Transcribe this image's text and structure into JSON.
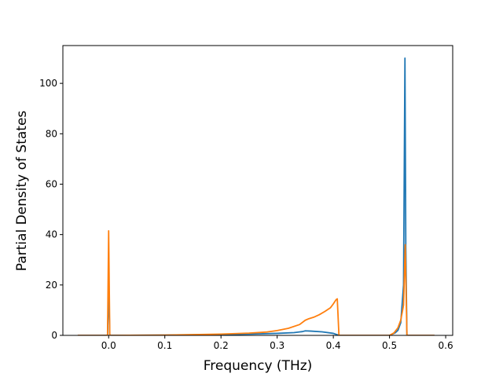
{
  "chart_data": {
    "type": "line",
    "title": "",
    "xlabel": "Frequency (THz)",
    "ylabel": "Partial Density of States",
    "xlim": [
      -0.0815,
      0.6125
    ],
    "ylim": [
      0,
      115
    ],
    "xticks": [
      0.0,
      0.1,
      0.2,
      0.3,
      0.4,
      0.5,
      0.6
    ],
    "xtick_labels": [
      "0.0",
      "0.1",
      "0.2",
      "0.3",
      "0.4",
      "0.5",
      "0.6"
    ],
    "yticks": [
      0,
      20,
      40,
      60,
      80,
      100
    ],
    "ytick_labels": [
      "0",
      "20",
      "40",
      "60",
      "80",
      "100"
    ],
    "grid": false,
    "legend": "none",
    "series": [
      {
        "color": "#1f77b4",
        "x": [
          -0.055,
          -0.004,
          -0.002,
          0.0,
          0.002,
          0.004,
          0.1,
          0.2,
          0.25,
          0.3,
          0.33,
          0.345,
          0.35,
          0.36,
          0.38,
          0.4,
          0.41,
          0.5,
          0.51,
          0.515,
          0.52,
          0.525,
          0.5275,
          0.529,
          0.531,
          0.535,
          0.58
        ],
        "y": [
          0,
          0,
          0,
          20,
          0,
          0,
          0.1,
          0.3,
          0.5,
          0.8,
          1.1,
          1.5,
          1.8,
          1.7,
          1.4,
          0.8,
          0,
          0,
          1,
          2,
          5,
          20,
          110,
          35,
          0,
          0,
          0
        ]
      },
      {
        "color": "#ff7f0e",
        "x": [
          -0.055,
          -0.004,
          -0.002,
          0.0,
          0.002,
          0.004,
          0.1,
          0.15,
          0.2,
          0.25,
          0.28,
          0.3,
          0.32,
          0.34,
          0.35,
          0.355,
          0.365,
          0.375,
          0.385,
          0.395,
          0.4,
          0.405,
          0.407,
          0.41,
          0.5,
          0.508,
          0.515,
          0.52,
          0.525,
          0.528,
          0.531,
          0.535,
          0.58
        ],
        "y": [
          0,
          0,
          0,
          41.5,
          0,
          0,
          0.1,
          0.3,
          0.5,
          0.9,
          1.3,
          1.9,
          2.8,
          4.3,
          6,
          6.5,
          7.2,
          8.2,
          9.5,
          11,
          12.5,
          14.2,
          14.5,
          0,
          0,
          1,
          3,
          6,
          12,
          36,
          0,
          0,
          0
        ]
      }
    ]
  }
}
